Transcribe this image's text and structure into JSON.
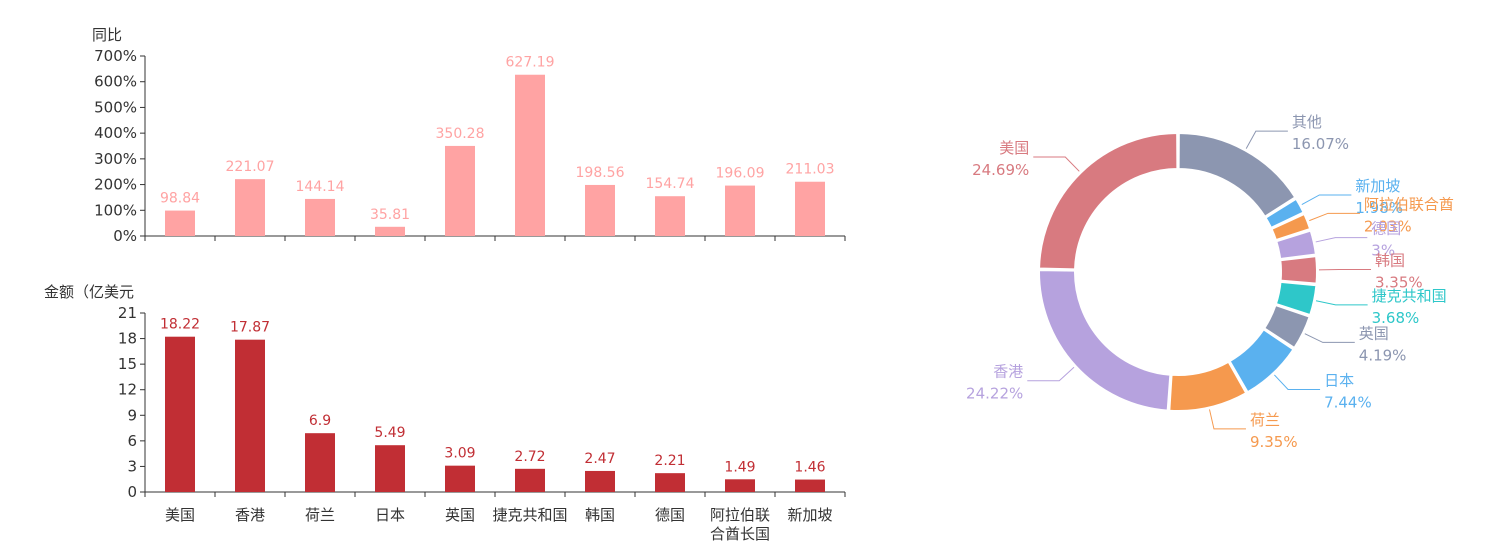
{
  "colors": {
    "yoy_bar": "#ffa3a3",
    "amount_bar": "#c12e34",
    "axis": "#333333"
  },
  "chart_data": [
    {
      "type": "bar",
      "name": "yoy",
      "ylabel": "同比",
      "ylim": [
        0,
        700
      ],
      "yticks": [
        "0%",
        "100%",
        "200%",
        "300%",
        "400%",
        "500%",
        "600%",
        "700%"
      ],
      "categories": [
        "美国",
        "香港",
        "荷兰",
        "日本",
        "英国",
        "捷克共和国",
        "韩国",
        "德国",
        "阿拉伯联合酋长国",
        "新加坡"
      ],
      "values": [
        98.84,
        221.07,
        144.14,
        35.81,
        350.28,
        627.19,
        198.56,
        154.74,
        196.09,
        211.03
      ],
      "value_labels": [
        "98.84",
        "221.07",
        "144.14",
        "35.81",
        "350.28",
        "627.19",
        "198.56",
        "154.74",
        "196.09",
        "211.03"
      ],
      "grid": false
    },
    {
      "type": "bar",
      "name": "amount",
      "ylabel": "金额（亿美元",
      "ylim": [
        0,
        21
      ],
      "yticks": [
        "0",
        "3",
        "6",
        "9",
        "12",
        "15",
        "18",
        "21"
      ],
      "categories": [
        "美国",
        "香港",
        "荷兰",
        "日本",
        "英国",
        "捷克共和国",
        "韩国",
        "德国",
        "阿拉伯联合酋长国",
        "新加坡"
      ],
      "x_tick_labels": [
        [
          "美国"
        ],
        [
          "香港"
        ],
        [
          "荷兰"
        ],
        [
          "日本"
        ],
        [
          "英国"
        ],
        [
          "捷克共和国"
        ],
        [
          "韩国"
        ],
        [
          "德国"
        ],
        [
          "阿拉伯联",
          "合酋长国"
        ],
        [
          "新加坡"
        ]
      ],
      "values": [
        18.22,
        17.87,
        6.9,
        5.49,
        3.09,
        2.72,
        2.47,
        2.21,
        1.49,
        1.46
      ],
      "value_labels": [
        "18.22",
        "17.87",
        "6.9",
        "5.49",
        "3.09",
        "2.72",
        "2.47",
        "2.21",
        "1.49",
        "1.46"
      ],
      "grid": false
    },
    {
      "type": "pie",
      "name": "share",
      "donut": true,
      "slices": [
        {
          "name": "其他",
          "value": 16.07,
          "label": "16.07%",
          "color": "#8c96b0"
        },
        {
          "name": "新加坡",
          "value": 1.98,
          "label": "1.98%",
          "color": "#5ab1ef"
        },
        {
          "name": "阿拉伯联合酋",
          "value": 2.03,
          "label": "2.03%",
          "color": "#f5994e"
        },
        {
          "name": "德国",
          "value": 3.0,
          "label": "3%",
          "color": "#b6a2de"
        },
        {
          "name": "韩国",
          "value": 3.35,
          "label": "3.35%",
          "color": "#d87a80"
        },
        {
          "name": "捷克共和国",
          "value": 3.68,
          "label": "3.68%",
          "color": "#2ec7c9"
        },
        {
          "name": "英国",
          "value": 4.19,
          "label": "4.19%",
          "color": "#8c96b0"
        },
        {
          "name": "日本",
          "value": 7.44,
          "label": "7.44%",
          "color": "#5ab1ef"
        },
        {
          "name": "荷兰",
          "value": 9.35,
          "label": "9.35%",
          "color": "#f5994e"
        },
        {
          "name": "香港",
          "value": 24.22,
          "label": "24.22%",
          "color": "#b6a2de"
        },
        {
          "name": "美国",
          "value": 24.69,
          "label": "24.69%",
          "color": "#d87a80"
        }
      ]
    }
  ]
}
